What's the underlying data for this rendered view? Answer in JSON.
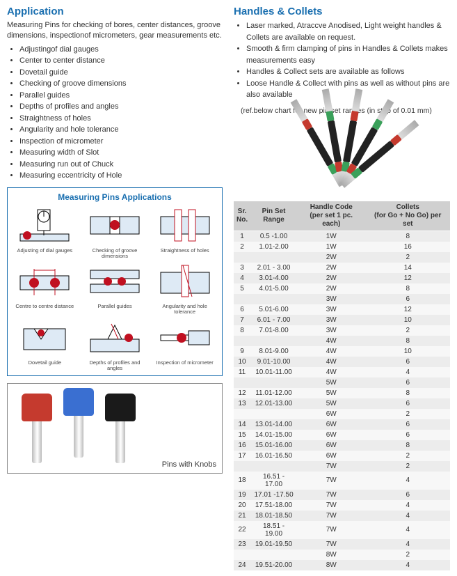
{
  "left": {
    "title": "Application",
    "intro": "Measuring Pins for checking of bores, center distances, groove dimensions, inspectionof micrometers, gear measurements etc.",
    "bullets": [
      "Adjustingof dial gauges",
      "Center to center distance",
      "Dovetail guide",
      "Checking of groove dimensions",
      "Parallel guides",
      "Depths of profiles and angles",
      "Straightness of holes",
      "Angularity and hole tolerance",
      "Inspection of micrometer",
      "Measuring width of Slot",
      "Measuring run out of Chuck",
      "Measuring eccentricity of Hole"
    ],
    "diagram_title": "Measuring Pins Applications",
    "diagram_captions": [
      "Adjusting of dial gauges",
      "Checking of groove dimensions",
      "Straightness of holes",
      "Centre to centre distance",
      "Parallel guides",
      "Angularity and hole tolerance",
      "Dovetail guide",
      "Depths of profiles and angles",
      "Inspection of micrometer"
    ],
    "diagram_stroke": "#c01020",
    "photo_caption": "Pins with Knobs",
    "knob_colors": [
      "#c53a2e",
      "#3a6fd1",
      "#1a1a1a"
    ]
  },
  "right": {
    "title": "Handles & Collets",
    "bullets": [
      "Laser marked, Atraccve Anodised, Light weight handles & Collets are available on request.",
      "Smooth & firm clamping of pins in Handles & Collets makes measurements easy",
      "Handles & Collect sets are available as follows",
      "Loose Handle & Collect with pins as well as without pins are also available"
    ],
    "note": "(ref.below chart for new pin set ranges (in step of 0.01 mm)",
    "fan_colors": [
      {
        "c1": "#3aa05a",
        "c2": "#c53a2e"
      },
      {
        "c1": "#c53a2e",
        "c2": "#3aa05a"
      },
      {
        "c1": "#3aa05a",
        "c2": "#c53a2e"
      },
      {
        "c1": "#c53a2e",
        "c2": "#3aa05a"
      },
      {
        "c1": "#3aa05a",
        "c2": "#c53a2e"
      }
    ],
    "table": {
      "headers": [
        "Sr.\nNo.",
        "Pin Set\nRange",
        "Handle Code\n(per set 1 pc. each)",
        "Collets\n(for Go + No Go) per set"
      ],
      "rows": [
        [
          "1",
          "0.5 -1.00",
          "1W",
          "8"
        ],
        [
          "2",
          "1.01-2.00",
          "1W",
          "16"
        ],
        [
          "",
          "",
          "2W",
          "2"
        ],
        [
          "3",
          "2.01 - 3.00",
          "2W",
          "14"
        ],
        [
          "4",
          "3.01-4.00",
          "2W",
          "12"
        ],
        [
          "5",
          "4.01-5.00",
          "2W",
          "8"
        ],
        [
          "",
          "",
          "3W",
          "6"
        ],
        [
          "6",
          "5.01-6.00",
          "3W",
          "12"
        ],
        [
          "7",
          "6.01 - 7.00",
          "3W",
          "10"
        ],
        [
          "8",
          "7.01-8.00",
          "3W",
          "2"
        ],
        [
          "",
          "",
          "4W",
          "8"
        ],
        [
          "9",
          "8.01-9.00",
          "4W",
          "10"
        ],
        [
          "10",
          "9.01-10.00",
          "4W",
          "6"
        ],
        [
          "11",
          "10.01-11.00",
          "4W",
          "4"
        ],
        [
          "",
          "",
          "5W",
          "6"
        ],
        [
          "12",
          "11.01-12.00",
          "5W",
          "8"
        ],
        [
          "13",
          "12.01-13.00",
          "5W",
          "6"
        ],
        [
          "",
          "",
          "6W",
          "2"
        ],
        [
          "14",
          "13.01-14.00",
          "6W",
          "6"
        ],
        [
          "15",
          "14.01-15.00",
          "6W",
          "6"
        ],
        [
          "16",
          "15.01-16.00",
          "6W",
          "8"
        ],
        [
          "17",
          "16.01-16.50",
          "6W",
          "2"
        ],
        [
          "",
          "",
          "7W",
          "2"
        ],
        [
          "18",
          "16.51 - 17.00",
          "7W",
          "4"
        ],
        [
          "19",
          "17.01 -17.50",
          "7W",
          "6"
        ],
        [
          "20",
          "17.51-18.00",
          "7W",
          "4"
        ],
        [
          "21",
          "18.01-18.50",
          "7W",
          "4"
        ],
        [
          "22",
          "18.51 - 19.00",
          "7W",
          "4"
        ],
        [
          "23",
          "19.01-19.50",
          "7W",
          "4"
        ],
        [
          "",
          "",
          "8W",
          "2"
        ],
        [
          "24",
          "19.51-20.00",
          "8W",
          "4"
        ]
      ]
    }
  },
  "colors": {
    "heading": "#1a6fb0",
    "row_odd": "#ececec",
    "row_even": "#f7f7f7",
    "header_bg": "#d0d0d0"
  }
}
